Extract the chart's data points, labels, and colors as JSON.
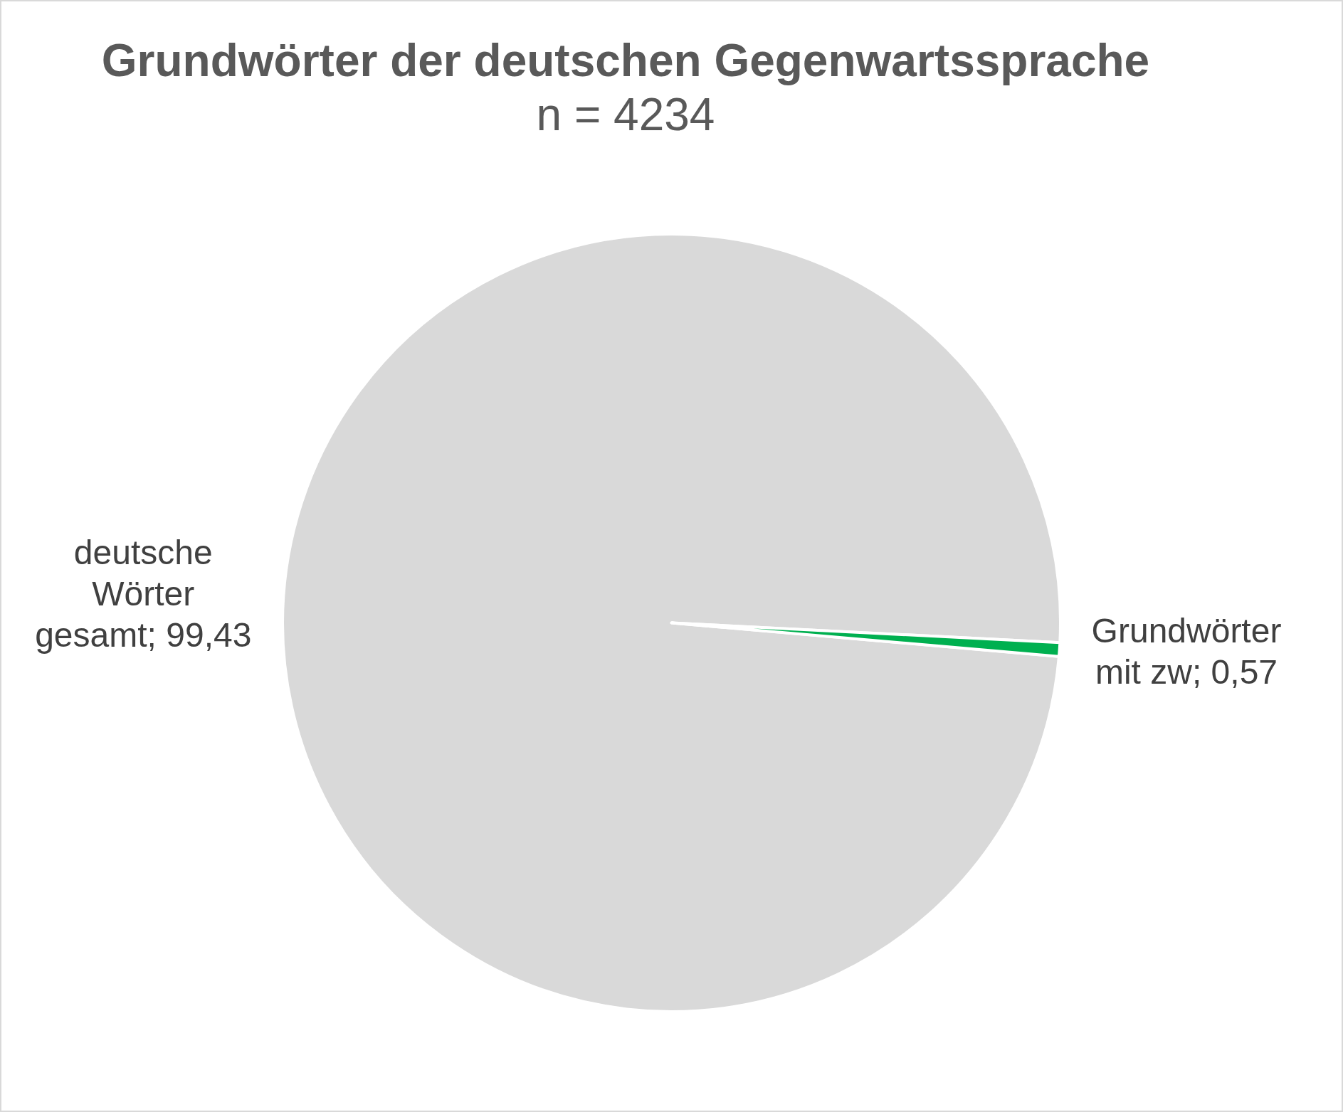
{
  "chart_data": {
    "type": "pie",
    "title": "Grundwörter der deutschen Gegenwartssprache",
    "subtitle": "n = 4234",
    "categories": [
      "deutsche Wörter gesamt",
      "Grundwörter mit zw"
    ],
    "values": [
      99.43,
      0.57
    ],
    "colors": [
      "#d9d9d9",
      "#00b050"
    ],
    "value_labels": [
      "99,43",
      "0,57"
    ]
  }
}
